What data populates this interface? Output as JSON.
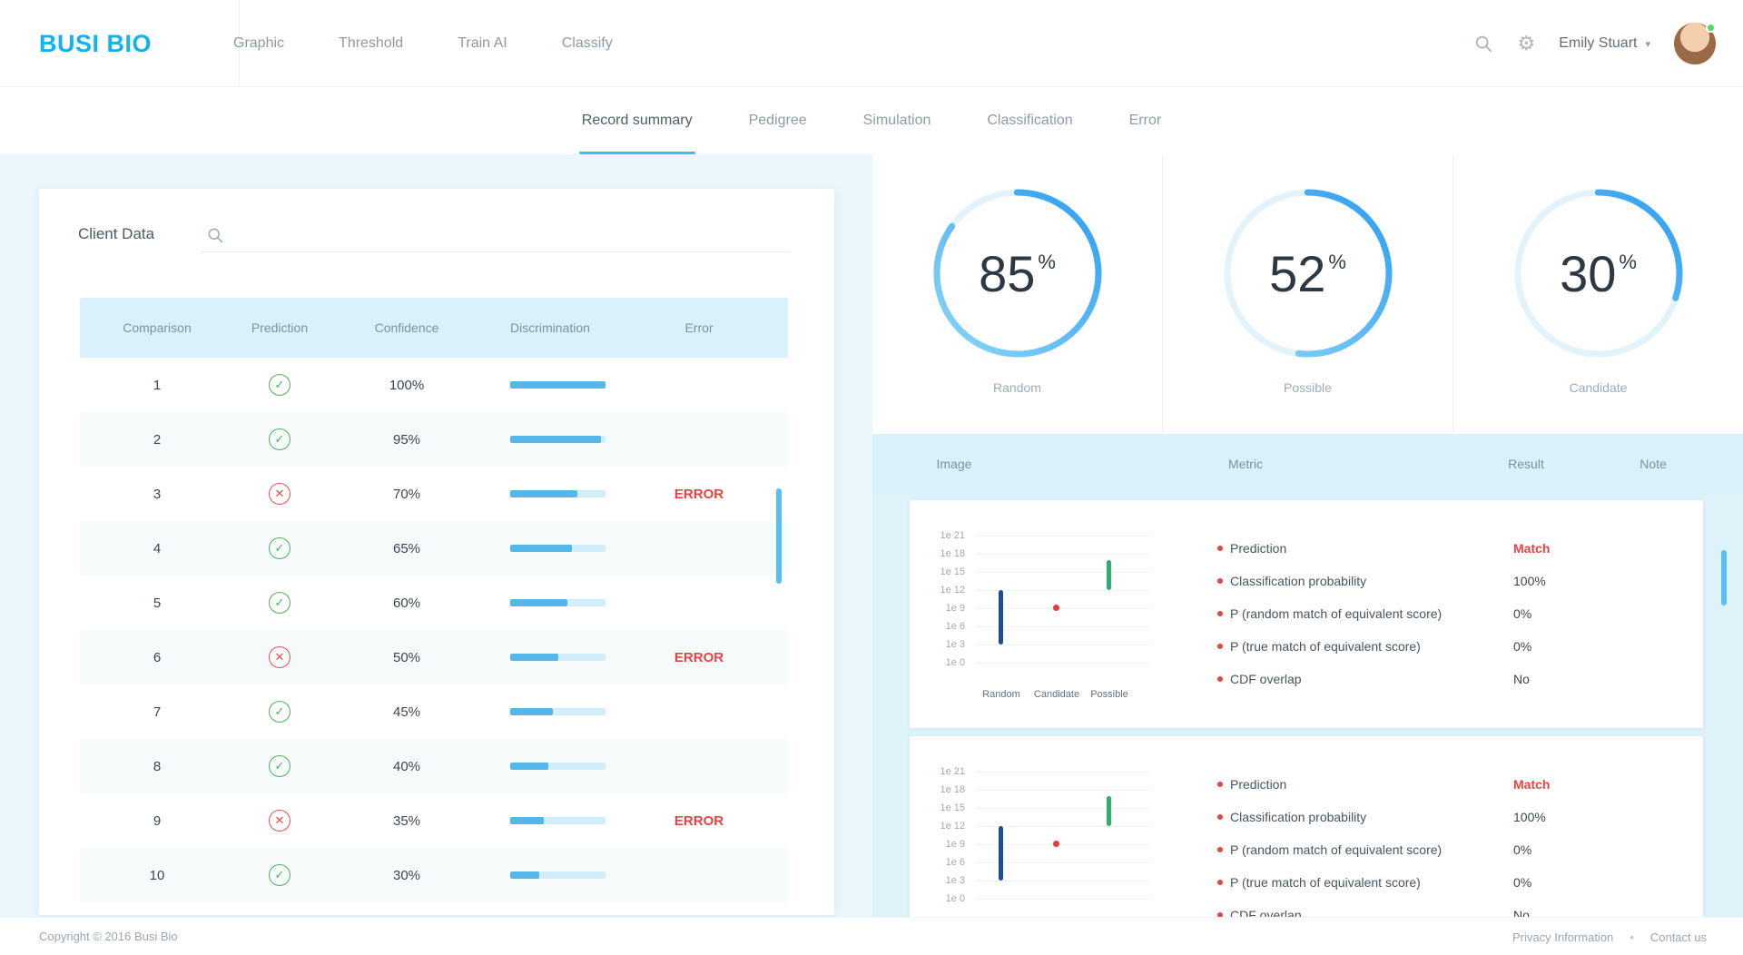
{
  "header": {
    "logo": "BUSI BIO",
    "nav": [
      {
        "label": "Graphic"
      },
      {
        "label": "Threshold"
      },
      {
        "label": "Train AI"
      },
      {
        "label": "Classify"
      }
    ],
    "user_name": "Emily Stuart"
  },
  "tabs": [
    {
      "label": "Record summary",
      "active": true
    },
    {
      "label": "Pedigree",
      "active": false
    },
    {
      "label": "Simulation",
      "active": false
    },
    {
      "label": "Classification",
      "active": false
    },
    {
      "label": "Error",
      "active": false
    }
  ],
  "client_panel": {
    "title": "Client Data",
    "columns": [
      "Comparison",
      "Prediction",
      "Confidence",
      "Discrimination",
      "Error"
    ],
    "rows": [
      {
        "comparison": "1",
        "prediction": "pass",
        "confidence": "100%",
        "discrimination": 100,
        "error": ""
      },
      {
        "comparison": "2",
        "prediction": "pass",
        "confidence": "95%",
        "discrimination": 95,
        "error": ""
      },
      {
        "comparison": "3",
        "prediction": "fail",
        "confidence": "70%",
        "discrimination": 70,
        "error": "ERROR"
      },
      {
        "comparison": "4",
        "prediction": "pass",
        "confidence": "65%",
        "discrimination": 65,
        "error": ""
      },
      {
        "comparison": "5",
        "prediction": "pass",
        "confidence": "60%",
        "discrimination": 60,
        "error": ""
      },
      {
        "comparison": "6",
        "prediction": "fail",
        "confidence": "50%",
        "discrimination": 50,
        "error": "ERROR"
      },
      {
        "comparison": "7",
        "prediction": "pass",
        "confidence": "45%",
        "discrimination": 45,
        "error": ""
      },
      {
        "comparison": "8",
        "prediction": "pass",
        "confidence": "40%",
        "discrimination": 40,
        "error": ""
      },
      {
        "comparison": "9",
        "prediction": "fail",
        "confidence": "35%",
        "discrimination": 35,
        "error": "ERROR"
      },
      {
        "comparison": "10",
        "prediction": "pass",
        "confidence": "30%",
        "discrimination": 30,
        "error": ""
      }
    ]
  },
  "gauges": [
    {
      "value": 85,
      "number": "85",
      "unit": "%",
      "label": "Random"
    },
    {
      "value": 52,
      "number": "52",
      "unit": "%",
      "label": "Possible"
    },
    {
      "value": 30,
      "number": "30",
      "unit": "%",
      "label": "Candidate"
    }
  ],
  "results": {
    "columns": [
      "Image",
      "Metric",
      "Result",
      "Note"
    ],
    "cards": [
      {
        "metrics": [
          {
            "label": "Prediction",
            "value": "Match",
            "match": true
          },
          {
            "label": "Classification probability",
            "value": "100%",
            "match": false
          },
          {
            "label": "P (random match of equivalent score)",
            "value": "0%",
            "match": false
          },
          {
            "label": "P (true match of equivalent score)",
            "value": "0%",
            "match": false
          },
          {
            "label": "CDF overlap",
            "value": "No",
            "match": false
          }
        ]
      },
      {
        "metrics": [
          {
            "label": "Prediction",
            "value": "Match",
            "match": true
          },
          {
            "label": "Classification probability",
            "value": "100%",
            "match": false
          },
          {
            "label": "P (random match of equivalent score)",
            "value": "0%",
            "match": false
          },
          {
            "label": "P (true match of equivalent score)",
            "value": "0%",
            "match": false
          },
          {
            "label": "CDF overlap",
            "value": "No",
            "match": false
          }
        ]
      }
    ]
  },
  "chart_data": {
    "type": "scatter",
    "y_scale": "log",
    "y_ticks": [
      "1e 21",
      "1e 18",
      "1e 15",
      "1e 12",
      "1e 9",
      "1e 6",
      "1e 3",
      "1e 0"
    ],
    "x_categories": [
      "Random",
      "Candidate",
      "Possible"
    ],
    "series": [
      {
        "name": "Random",
        "kind": "range",
        "color": "#1d4e93",
        "low": "1e3",
        "high": "1e12"
      },
      {
        "name": "Candidate",
        "kind": "point",
        "color": "#e03e36",
        "value": "1e9"
      },
      {
        "name": "Possible",
        "kind": "range",
        "color": "#2fae6f",
        "low": "1e12",
        "high": "1e17"
      }
    ]
  },
  "footer": {
    "copyright": "Copyright © 2016 Busi Bio",
    "privacy": "Privacy Information",
    "separator": "•",
    "contact": "Contact us"
  },
  "colors": {
    "accent": "#29b6f6",
    "error": "#e8433f",
    "success": "#49b35b",
    "range_navy": "#1d4e93",
    "range_green": "#2fae6f",
    "header_blue": "#d9f1fb"
  }
}
